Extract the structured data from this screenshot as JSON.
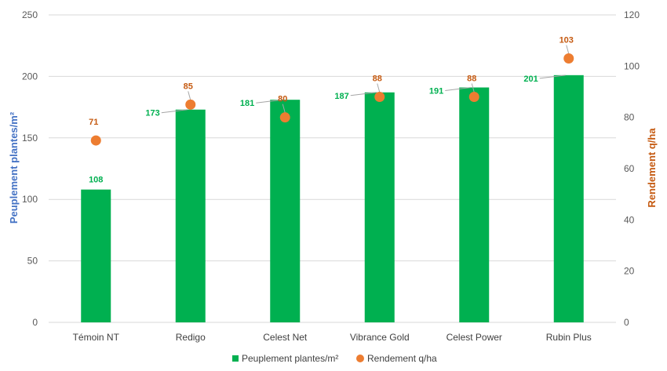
{
  "chart_data": {
    "type": "bar",
    "categories": [
      "Témoin NT",
      "Redigo",
      "Celest Net",
      "Vibrance Gold",
      "Celest Power",
      "Rubin Plus"
    ],
    "series": [
      {
        "name": "Peuplement plantes/m²",
        "type": "bar",
        "axis": "left",
        "color": "#00B050",
        "values": [
          108,
          173,
          181,
          187,
          191,
          201
        ]
      },
      {
        "name": "Rendement q/ha",
        "type": "scatter",
        "axis": "right",
        "color": "#ED7D31",
        "values": [
          71,
          85,
          80,
          88,
          88,
          103
        ]
      }
    ],
    "ylabel": "Peuplement plantes/m²",
    "y2label": "Rendement q/ha",
    "ylim": [
      0,
      250
    ],
    "y2lim": [
      0,
      120
    ],
    "yticks": [
      "0",
      "50",
      "100",
      "150",
      "200",
      "250"
    ],
    "y2ticks": [
      "0",
      "20",
      "40",
      "60",
      "80",
      "100",
      "120"
    ],
    "grid": true,
    "legend": "bottom",
    "colors": {
      "axis_left_label": "#4472C4",
      "axis_right_label": "#C55A11",
      "bar_label": "#00B050",
      "point_label": "#C55A11"
    }
  }
}
